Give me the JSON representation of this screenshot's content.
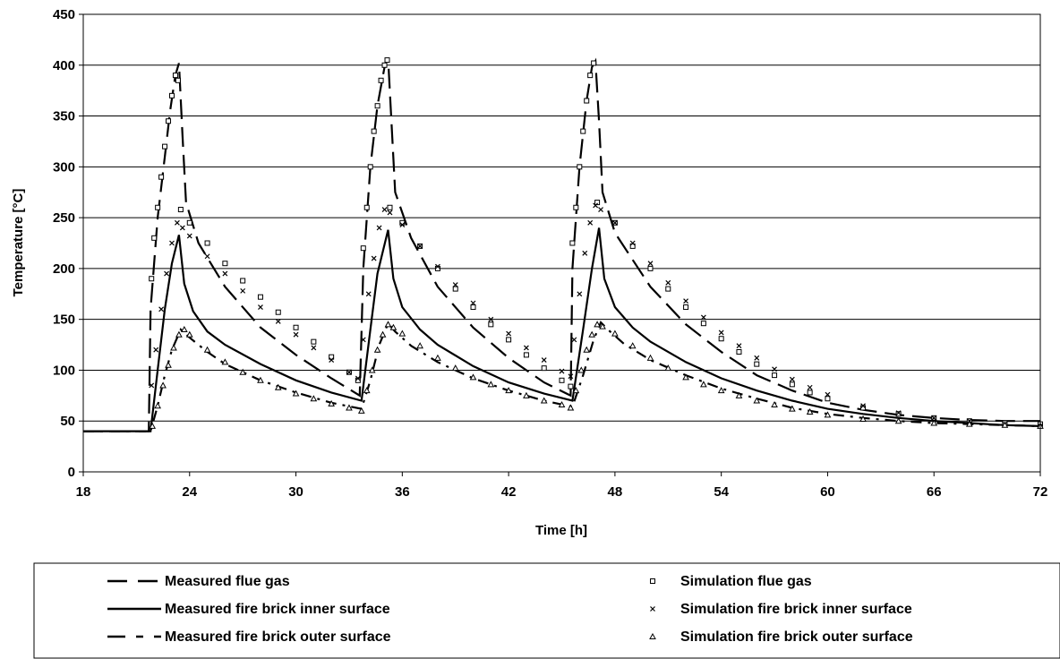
{
  "chart_data": {
    "type": "line",
    "title": "",
    "xlabel": "Time [h]",
    "ylabel": "Temperature [°C]",
    "xlim": [
      18,
      72
    ],
    "ylim": [
      0,
      450
    ],
    "x_ticks": [
      18,
      24,
      30,
      36,
      42,
      48,
      54,
      60,
      66,
      72
    ],
    "y_ticks": [
      0,
      50,
      100,
      150,
      200,
      250,
      300,
      350,
      400,
      450
    ],
    "grid": "horizontal",
    "legend": "bottom",
    "series": [
      {
        "name": "Measured flue gas",
        "style": "long-dash",
        "color": "#000000",
        "points": [
          [
            18,
            40
          ],
          [
            21.7,
            40
          ],
          [
            21.8,
            160
          ],
          [
            22.2,
            250
          ],
          [
            22.6,
            310
          ],
          [
            22.9,
            355
          ],
          [
            23.2,
            390
          ],
          [
            23.4,
            402
          ],
          [
            23.6,
            330
          ],
          [
            23.8,
            265
          ],
          [
            24.5,
            225
          ],
          [
            26,
            182
          ],
          [
            28,
            142
          ],
          [
            30,
            115
          ],
          [
            32,
            92
          ],
          [
            33.6,
            75
          ],
          [
            33.8,
            200
          ],
          [
            34.2,
            300
          ],
          [
            34.6,
            360
          ],
          [
            35.0,
            398
          ],
          [
            35.2,
            407
          ],
          [
            35.4,
            340
          ],
          [
            35.6,
            275
          ],
          [
            36.5,
            230
          ],
          [
            38,
            182
          ],
          [
            40,
            142
          ],
          [
            42,
            112
          ],
          [
            44,
            88
          ],
          [
            45.5,
            75
          ],
          [
            45.6,
            200
          ],
          [
            46.0,
            300
          ],
          [
            46.4,
            365
          ],
          [
            46.7,
            398
          ],
          [
            46.9,
            404
          ],
          [
            47.1,
            345
          ],
          [
            47.3,
            275
          ],
          [
            48,
            235
          ],
          [
            50,
            182
          ],
          [
            52,
            145
          ],
          [
            54,
            118
          ],
          [
            56,
            95
          ],
          [
            58,
            80
          ],
          [
            60,
            68
          ],
          [
            62,
            61
          ],
          [
            64,
            56
          ],
          [
            66,
            53
          ],
          [
            68,
            51
          ],
          [
            70,
            50
          ],
          [
            72,
            50
          ]
        ]
      },
      {
        "name": "Measured fire brick inner surface",
        "style": "solid",
        "color": "#000000",
        "points": [
          [
            18,
            40
          ],
          [
            21.8,
            40
          ],
          [
            22.2,
            100
          ],
          [
            22.6,
            160
          ],
          [
            23.0,
            205
          ],
          [
            23.4,
            233
          ],
          [
            23.7,
            185
          ],
          [
            24.2,
            158
          ],
          [
            25,
            138
          ],
          [
            26,
            125
          ],
          [
            28,
            106
          ],
          [
            30,
            90
          ],
          [
            32,
            78
          ],
          [
            33.7,
            70
          ],
          [
            34.2,
            140
          ],
          [
            34.6,
            195
          ],
          [
            35.2,
            238
          ],
          [
            35.5,
            190
          ],
          [
            36,
            162
          ],
          [
            37,
            140
          ],
          [
            38,
            125
          ],
          [
            40,
            104
          ],
          [
            42,
            88
          ],
          [
            44,
            77
          ],
          [
            45.6,
            70
          ],
          [
            46.2,
            140
          ],
          [
            46.7,
            200
          ],
          [
            47.1,
            240
          ],
          [
            47.4,
            190
          ],
          [
            48,
            162
          ],
          [
            49,
            142
          ],
          [
            50,
            128
          ],
          [
            52,
            108
          ],
          [
            54,
            92
          ],
          [
            56,
            80
          ],
          [
            58,
            70
          ],
          [
            60,
            62
          ],
          [
            62,
            57
          ],
          [
            64,
            53
          ],
          [
            66,
            50
          ],
          [
            68,
            48
          ],
          [
            70,
            46
          ],
          [
            72,
            45
          ]
        ]
      },
      {
        "name": "Measured fire brick outer surface",
        "style": "dash",
        "color": "#000000",
        "points": [
          [
            18,
            40
          ],
          [
            21.8,
            40
          ],
          [
            22.2,
            65
          ],
          [
            22.6,
            95
          ],
          [
            23.0,
            120
          ],
          [
            23.5,
            140
          ],
          [
            24,
            132
          ],
          [
            25,
            118
          ],
          [
            26,
            106
          ],
          [
            28,
            90
          ],
          [
            30,
            78
          ],
          [
            32,
            68
          ],
          [
            33.7,
            62
          ],
          [
            34.2,
            90
          ],
          [
            34.7,
            125
          ],
          [
            35.2,
            146
          ],
          [
            35.6,
            138
          ],
          [
            36.5,
            124
          ],
          [
            38,
            108
          ],
          [
            40,
            92
          ],
          [
            42,
            80
          ],
          [
            44,
            70
          ],
          [
            45.6,
            64
          ],
          [
            46.2,
            95
          ],
          [
            46.8,
            130
          ],
          [
            47.2,
            147
          ],
          [
            47.6,
            140
          ],
          [
            48.5,
            126
          ],
          [
            50,
            110
          ],
          [
            52,
            95
          ],
          [
            54,
            82
          ],
          [
            56,
            72
          ],
          [
            58,
            63
          ],
          [
            60,
            57
          ],
          [
            62,
            53
          ],
          [
            64,
            50
          ],
          [
            66,
            48
          ],
          [
            68,
            47
          ],
          [
            70,
            46
          ],
          [
            72,
            45
          ]
        ]
      },
      {
        "name": "Simulation flue gas",
        "style": "square-marker",
        "color": "#000000",
        "points": [
          [
            21.85,
            190
          ],
          [
            22.0,
            230
          ],
          [
            22.2,
            260
          ],
          [
            22.4,
            290
          ],
          [
            22.6,
            320
          ],
          [
            22.8,
            345
          ],
          [
            23.0,
            370
          ],
          [
            23.2,
            390
          ],
          [
            23.35,
            385
          ],
          [
            23.5,
            258
          ],
          [
            24,
            245
          ],
          [
            25,
            225
          ],
          [
            26,
            205
          ],
          [
            27,
            188
          ],
          [
            28,
            172
          ],
          [
            29,
            157
          ],
          [
            30,
            142
          ],
          [
            31,
            128
          ],
          [
            32,
            113
          ],
          [
            33,
            98
          ],
          [
            33.5,
            90
          ],
          [
            33.8,
            220
          ],
          [
            34.0,
            260
          ],
          [
            34.2,
            300
          ],
          [
            34.4,
            335
          ],
          [
            34.6,
            360
          ],
          [
            34.8,
            385
          ],
          [
            35.0,
            400
          ],
          [
            35.15,
            405
          ],
          [
            35.3,
            260
          ],
          [
            36,
            245
          ],
          [
            37,
            222
          ],
          [
            38,
            200
          ],
          [
            39,
            180
          ],
          [
            40,
            162
          ],
          [
            41,
            145
          ],
          [
            42,
            130
          ],
          [
            43,
            115
          ],
          [
            44,
            102
          ],
          [
            45,
            90
          ],
          [
            45.5,
            84
          ],
          [
            45.6,
            225
          ],
          [
            45.8,
            260
          ],
          [
            46.0,
            300
          ],
          [
            46.2,
            335
          ],
          [
            46.4,
            365
          ],
          [
            46.6,
            390
          ],
          [
            46.8,
            402
          ],
          [
            47.0,
            265
          ],
          [
            48,
            245
          ],
          [
            49,
            222
          ],
          [
            50,
            200
          ],
          [
            51,
            180
          ],
          [
            52,
            162
          ],
          [
            53,
            146
          ],
          [
            54,
            131
          ],
          [
            55,
            118
          ],
          [
            56,
            106
          ],
          [
            57,
            95
          ],
          [
            58,
            86
          ],
          [
            59,
            78
          ],
          [
            60,
            72
          ],
          [
            62,
            63
          ],
          [
            64,
            57
          ],
          [
            66,
            53
          ],
          [
            68,
            50
          ],
          [
            70,
            48
          ],
          [
            72,
            47
          ]
        ]
      },
      {
        "name": "Simulation fire brick inner surface",
        "style": "x-marker",
        "color": "#000000",
        "points": [
          [
            21.85,
            85
          ],
          [
            22.1,
            120
          ],
          [
            22.4,
            160
          ],
          [
            22.7,
            195
          ],
          [
            23.0,
            225
          ],
          [
            23.3,
            245
          ],
          [
            23.6,
            240
          ],
          [
            24,
            232
          ],
          [
            25,
            212
          ],
          [
            26,
            195
          ],
          [
            27,
            178
          ],
          [
            28,
            162
          ],
          [
            29,
            148
          ],
          [
            30,
            135
          ],
          [
            31,
            122
          ],
          [
            32,
            110
          ],
          [
            33,
            98
          ],
          [
            33.5,
            92
          ],
          [
            33.8,
            130
          ],
          [
            34.1,
            175
          ],
          [
            34.4,
            210
          ],
          [
            34.7,
            240
          ],
          [
            35.0,
            258
          ],
          [
            35.3,
            255
          ],
          [
            36,
            243
          ],
          [
            37,
            222
          ],
          [
            38,
            202
          ],
          [
            39,
            184
          ],
          [
            40,
            166
          ],
          [
            41,
            150
          ],
          [
            42,
            136
          ],
          [
            43,
            122
          ],
          [
            44,
            110
          ],
          [
            45,
            99
          ],
          [
            45.5,
            94
          ],
          [
            45.7,
            130
          ],
          [
            46.0,
            175
          ],
          [
            46.3,
            215
          ],
          [
            46.6,
            245
          ],
          [
            46.9,
            262
          ],
          [
            47.2,
            258
          ],
          [
            48,
            245
          ],
          [
            49,
            225
          ],
          [
            50,
            205
          ],
          [
            51,
            186
          ],
          [
            52,
            168
          ],
          [
            53,
            152
          ],
          [
            54,
            137
          ],
          [
            55,
            124
          ],
          [
            56,
            112
          ],
          [
            57,
            101
          ],
          [
            58,
            91
          ],
          [
            59,
            83
          ],
          [
            60,
            76
          ],
          [
            62,
            65
          ],
          [
            64,
            58
          ],
          [
            66,
            53
          ],
          [
            68,
            50
          ],
          [
            70,
            47
          ],
          [
            72,
            45
          ]
        ]
      },
      {
        "name": "Simulation fire brick outer surface",
        "style": "triangle-marker",
        "color": "#000000",
        "points": [
          [
            21.9,
            45
          ],
          [
            22.2,
            65
          ],
          [
            22.5,
            85
          ],
          [
            22.8,
            105
          ],
          [
            23.1,
            122
          ],
          [
            23.4,
            135
          ],
          [
            23.7,
            140
          ],
          [
            24,
            135
          ],
          [
            25,
            120
          ],
          [
            26,
            108
          ],
          [
            27,
            98
          ],
          [
            28,
            90
          ],
          [
            29,
            83
          ],
          [
            30,
            77
          ],
          [
            31,
            72
          ],
          [
            32,
            67
          ],
          [
            33,
            63
          ],
          [
            33.7,
            60
          ],
          [
            34.0,
            80
          ],
          [
            34.3,
            100
          ],
          [
            34.6,
            120
          ],
          [
            34.9,
            135
          ],
          [
            35.2,
            145
          ],
          [
            35.5,
            142
          ],
          [
            36,
            136
          ],
          [
            37,
            124
          ],
          [
            38,
            112
          ],
          [
            39,
            102
          ],
          [
            40,
            93
          ],
          [
            41,
            86
          ],
          [
            42,
            80
          ],
          [
            43,
            75
          ],
          [
            44,
            70
          ],
          [
            45,
            66
          ],
          [
            45.5,
            63
          ],
          [
            45.8,
            80
          ],
          [
            46.1,
            100
          ],
          [
            46.4,
            120
          ],
          [
            46.7,
            135
          ],
          [
            47.0,
            145
          ],
          [
            47.3,
            143
          ],
          [
            48,
            136
          ],
          [
            49,
            124
          ],
          [
            50,
            112
          ],
          [
            51,
            102
          ],
          [
            52,
            93
          ],
          [
            53,
            86
          ],
          [
            54,
            80
          ],
          [
            55,
            75
          ],
          [
            56,
            70
          ],
          [
            57,
            66
          ],
          [
            58,
            62
          ],
          [
            59,
            59
          ],
          [
            60,
            56
          ],
          [
            62,
            52
          ],
          [
            64,
            50
          ],
          [
            66,
            48
          ],
          [
            68,
            47
          ],
          [
            70,
            46
          ],
          [
            72,
            45
          ]
        ]
      }
    ]
  }
}
